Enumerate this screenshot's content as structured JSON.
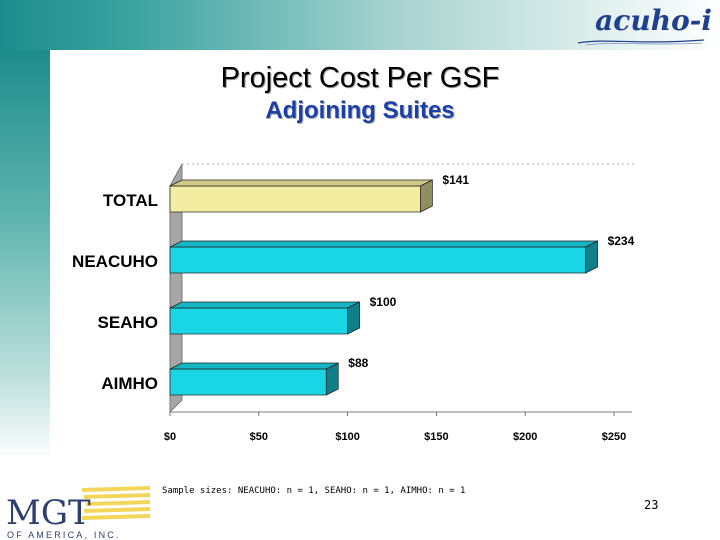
{
  "header": {
    "logo_text": "acuho-i"
  },
  "title": "Project Cost Per GSF",
  "subtitle": "Adjoining Suites",
  "footnote": "Sample sizes: NEACUHO: n = 1, SEAHO: n = 1, AIMHO: n = 1",
  "page_number": "23",
  "footer_logo": {
    "main": "MGT",
    "sub": "OF AMERICA, INC."
  },
  "colors": {
    "total_bar": "#f2eda0",
    "region_bar": "#19d5e6",
    "band": "#1e8c8c",
    "subtitle": "#1a3fa8",
    "logo": "#1f3f8f"
  },
  "chart_data": {
    "type": "bar",
    "orientation": "horizontal",
    "categories": [
      "TOTAL",
      "NEACUHO",
      "SEAHO",
      "AIMHO"
    ],
    "values": [
      141,
      234,
      100,
      88
    ],
    "value_labels": [
      "$141",
      "$234",
      "$100",
      "$88"
    ],
    "xlim": [
      0,
      250
    ],
    "xticks": [
      0,
      50,
      100,
      150,
      200,
      250
    ],
    "xtick_labels": [
      "$0",
      "$50",
      "$100",
      "$150",
      "$200",
      "$250"
    ],
    "bar_colors": [
      "#f2eda0",
      "#19d5e6",
      "#19d5e6",
      "#19d5e6"
    ],
    "grid": false,
    "legend": "none",
    "style": "3d"
  }
}
